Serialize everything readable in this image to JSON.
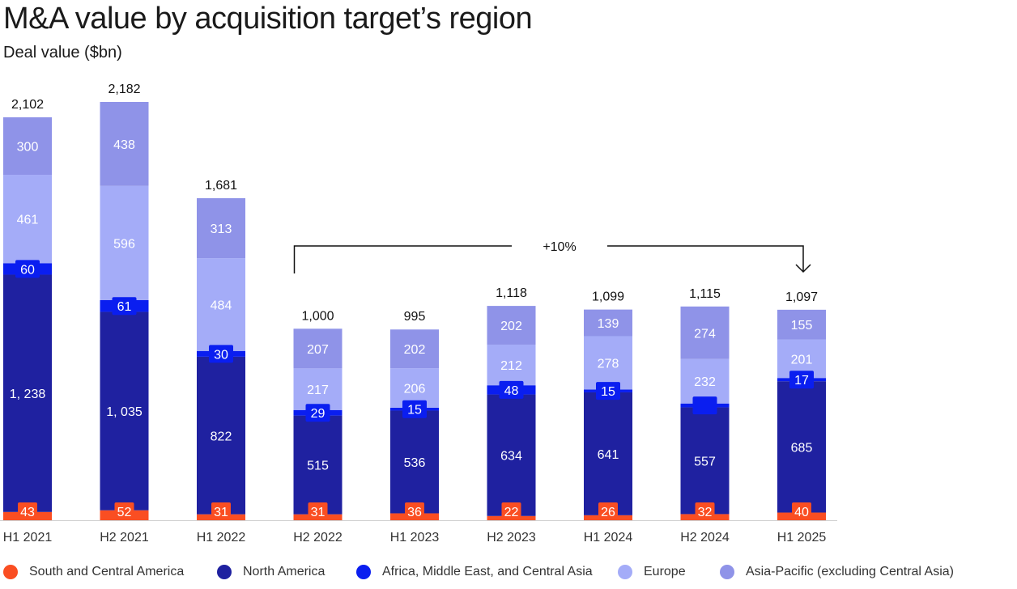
{
  "title": "M&A value by acquisition target’s region",
  "subtitle": "Deal value ($bn)",
  "colors": {
    "south_central_america": "#fa4e22",
    "north_america": "#1f21a0",
    "africa_me_ca": "#0a1ef0",
    "europe": "#a4acf8",
    "asia_pacific": "#8f93e8"
  },
  "chart_data": {
    "type": "bar",
    "stacked": true,
    "categories": [
      "H1 2021",
      "H2 2021",
      "H1 2022",
      "H2 2022",
      "H1 2023",
      "H2 2023",
      "H1 2024",
      "H2 2024",
      "H1 2025"
    ],
    "totals": [
      "2,102",
      "2,182",
      "1,681",
      "1,000",
      "995",
      "1,118",
      "1,099",
      "1,115",
      "1,097"
    ],
    "series": [
      {
        "name": "South and Central America",
        "key": "south_central_america",
        "values": [
          43,
          52,
          31,
          31,
          36,
          22,
          26,
          32,
          40
        ],
        "labels": [
          "43",
          "52",
          "31",
          "31",
          "36",
          "22",
          "26",
          "32",
          "40"
        ]
      },
      {
        "name": "North America",
        "key": "north_america",
        "values": [
          1238,
          1035,
          822,
          515,
          536,
          634,
          641,
          557,
          685
        ],
        "labels": [
          "1, 238",
          "1, 035",
          "822",
          "515",
          "536",
          "634",
          "641",
          "557",
          "685"
        ]
      },
      {
        "name": "Africa, Middle East, and Central Asia",
        "key": "africa_me_ca",
        "values": [
          60,
          61,
          30,
          29,
          15,
          48,
          15,
          20,
          17
        ],
        "labels": [
          "60",
          "61",
          "30",
          "29",
          "15",
          "48",
          "15",
          "",
          "17"
        ]
      },
      {
        "name": "Europe",
        "key": "europe",
        "values": [
          461,
          596,
          484,
          217,
          206,
          212,
          278,
          232,
          201
        ],
        "labels": [
          "461",
          "596",
          "484",
          "217",
          "206",
          "212",
          "278",
          "232",
          "201"
        ]
      },
      {
        "name": "Asia-Pacific (excluding Central Asia)",
        "key": "asia_pacific",
        "values": [
          300,
          438,
          313,
          207,
          202,
          202,
          139,
          274,
          155
        ],
        "labels": [
          "300",
          "438",
          "313",
          "207",
          "202",
          "202",
          "139",
          "274",
          "155"
        ]
      }
    ],
    "annotation": {
      "text": "+10%",
      "from": "H2 2022",
      "to": "H1 2025"
    },
    "ylim": [
      0,
      2182
    ],
    "grid": false,
    "legend_position": "bottom"
  }
}
